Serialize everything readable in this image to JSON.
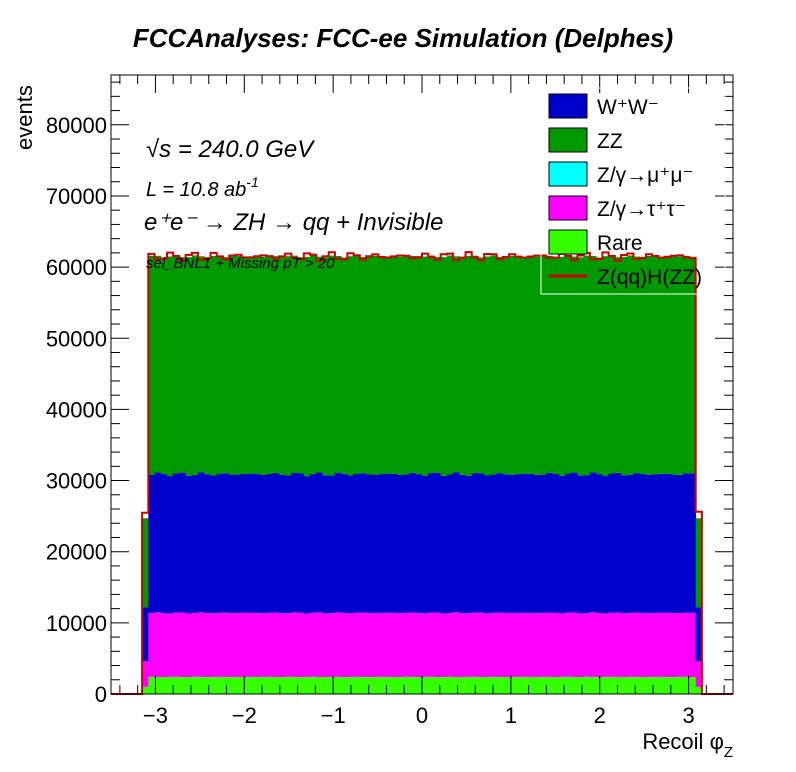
{
  "chart_data": {
    "type": "area",
    "title": "FCCAnalyses: FCC-ee Simulation (Delphes)",
    "xlabel_main": "Recoil ",
    "xlabel_sym": "φ",
    "xlabel_sub": "Z",
    "ylabel": "events",
    "xlim": [
      -3.5,
      3.5
    ],
    "ylim": [
      0,
      87000
    ],
    "xticks": [
      -3,
      -2,
      -1,
      0,
      1,
      2,
      3
    ],
    "xtick_labels": [
      "−3",
      "−2",
      "−1",
      "0",
      "1",
      "2",
      "3"
    ],
    "yticks": [
      0,
      10000,
      20000,
      30000,
      40000,
      50000,
      60000,
      70000,
      80000
    ],
    "grid": false,
    "legend_position": "top-right",
    "annotations": {
      "sqrts_sym": "√s",
      "sqrts_rest": " = 240.0 GeV",
      "lumi_main": "L = 10.8 ab",
      "lumi_sup": "-1",
      "process": "e⁺e⁻ → ZH → qq + Invisible",
      "selection": "sel_BNL1 + Missing pT > 20"
    },
    "binning": {
      "x_range": [
        -3.5,
        3.5
      ],
      "bins": 100
    },
    "stack_order": [
      "Rare",
      "Z/γ→τ⁺τ⁻",
      "Z/γ→μ⁺μ⁻",
      "W⁺W⁻",
      "ZZ"
    ],
    "series": [
      {
        "name": "W⁺W⁻",
        "color": "#0000cc",
        "kind": "fill",
        "plateau": 19500,
        "edge_bins": 7600
      },
      {
        "name": "ZZ",
        "color": "#009900",
        "kind": "fill",
        "plateau": 30600,
        "edge_bins": 12500
      },
      {
        "name": "Z/γ→μ⁺μ⁻",
        "color": "#00ffff",
        "kind": "fill",
        "plateau": 0,
        "edge_bins": 0
      },
      {
        "name": "Z/γ→τ⁺τ⁻",
        "color": "#ff00ff",
        "kind": "fill",
        "plateau": 9000,
        "edge_bins": 3600
      },
      {
        "name": "Rare",
        "color": "#33ff00",
        "kind": "fill",
        "plateau": 2400,
        "edge_bins": 1000
      },
      {
        "name": "Z(qq)H(ZZ)",
        "color": "#cc0000",
        "kind": "line",
        "plateau": 61500,
        "edge_bins": 25300
      }
    ],
    "legend": [
      {
        "label": "W⁺W⁻",
        "color": "#0000cc",
        "kind": "fill"
      },
      {
        "label": "ZZ",
        "color": "#009900",
        "kind": "fill"
      },
      {
        "label": "Z/γ→μ⁺μ⁻",
        "color": "#00ffff",
        "kind": "fill"
      },
      {
        "label": "Z/γ→τ⁺τ⁻",
        "color": "#ff00ff",
        "kind": "fill"
      },
      {
        "label": "Rare",
        "color": "#33ff00",
        "kind": "fill"
      },
      {
        "label": "Z(qq)H(ZZ)",
        "color": "#cc0000",
        "kind": "line"
      }
    ]
  }
}
